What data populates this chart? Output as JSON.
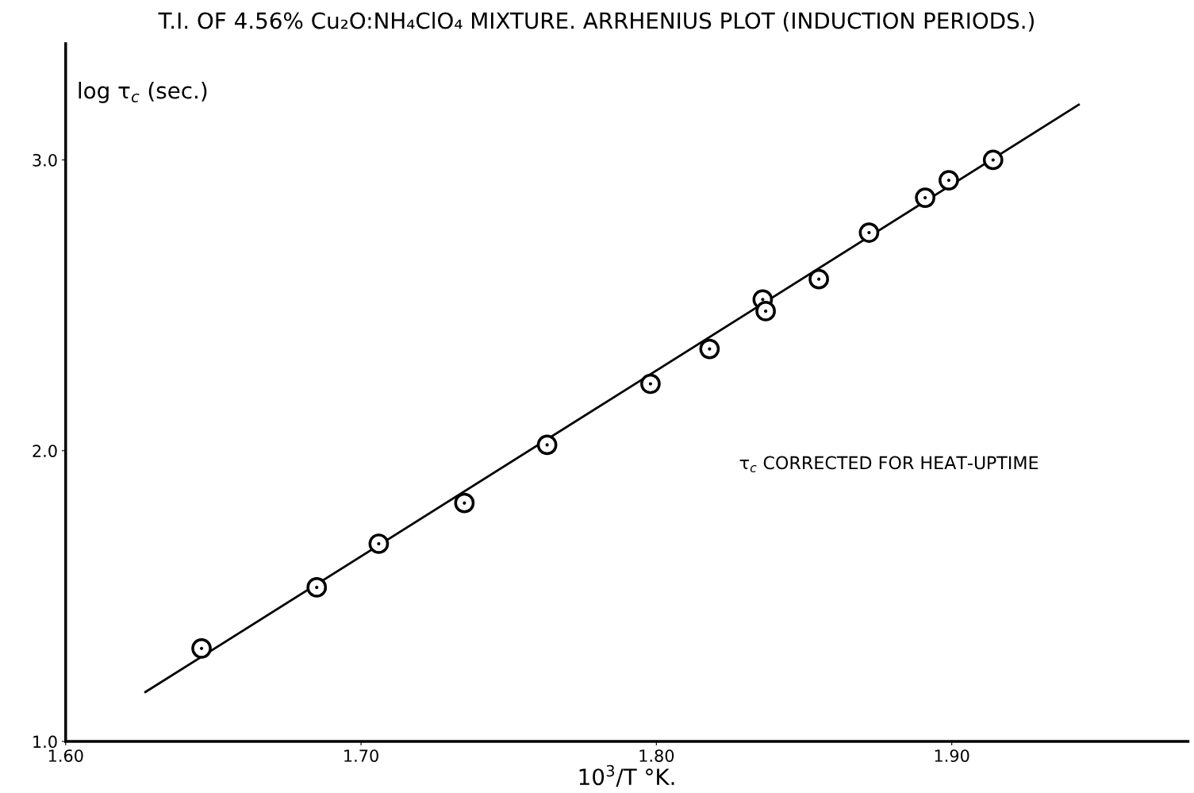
{
  "chart_data": {
    "type": "scatter",
    "title": "T.I. OF 4.56% Cu₂O:NH₄ClO₄ MIXTURE. ARRHENIUS PLOT (INDUCTION PERIODS.)",
    "xlabel": "10$^{3}$/T °K.",
    "ylabel": "log τ$_{c}$ (sec.)",
    "annotations": [
      "τ$_{c}$ CORRECTED FOR HEAT-UPTIME"
    ],
    "series": [
      {
        "type": "scatter",
        "color": "#000000",
        "marker": "circle",
        "x": [
          1.646,
          1.685,
          1.706,
          1.735,
          1.763,
          1.798,
          1.818,
          1.836,
          1.837,
          1.855,
          1.872,
          1.891,
          1.899,
          1.914
        ],
        "values": [
          1.32,
          1.53,
          1.68,
          1.82,
          2.02,
          2.23,
          2.35,
          2.52,
          2.48,
          2.59,
          2.75,
          2.87,
          2.93,
          3.0
        ]
      },
      {
        "type": "line",
        "color": "#000000",
        "marker": "none",
        "line_style": "solid",
        "x": [
          1.627,
          1.943
        ],
        "values": [
          1.17,
          3.19
        ]
      }
    ],
    "xlim": [
      1.6,
      1.98
    ],
    "ylim": [
      1.0,
      3.4
    ],
    "xticks": [
      {
        "value": 1.6,
        "label": "1.60"
      },
      {
        "value": 1.7,
        "label": "1.70"
      },
      {
        "value": 1.8,
        "label": "1.80"
      },
      {
        "value": 1.9,
        "label": "1.90"
      }
    ],
    "yticks": [
      {
        "value": 1.0,
        "label": "1.0"
      },
      {
        "value": 2.0,
        "label": "2.0"
      },
      {
        "value": 3.0,
        "label": "3.0"
      }
    ],
    "grid": false,
    "legend": false
  }
}
